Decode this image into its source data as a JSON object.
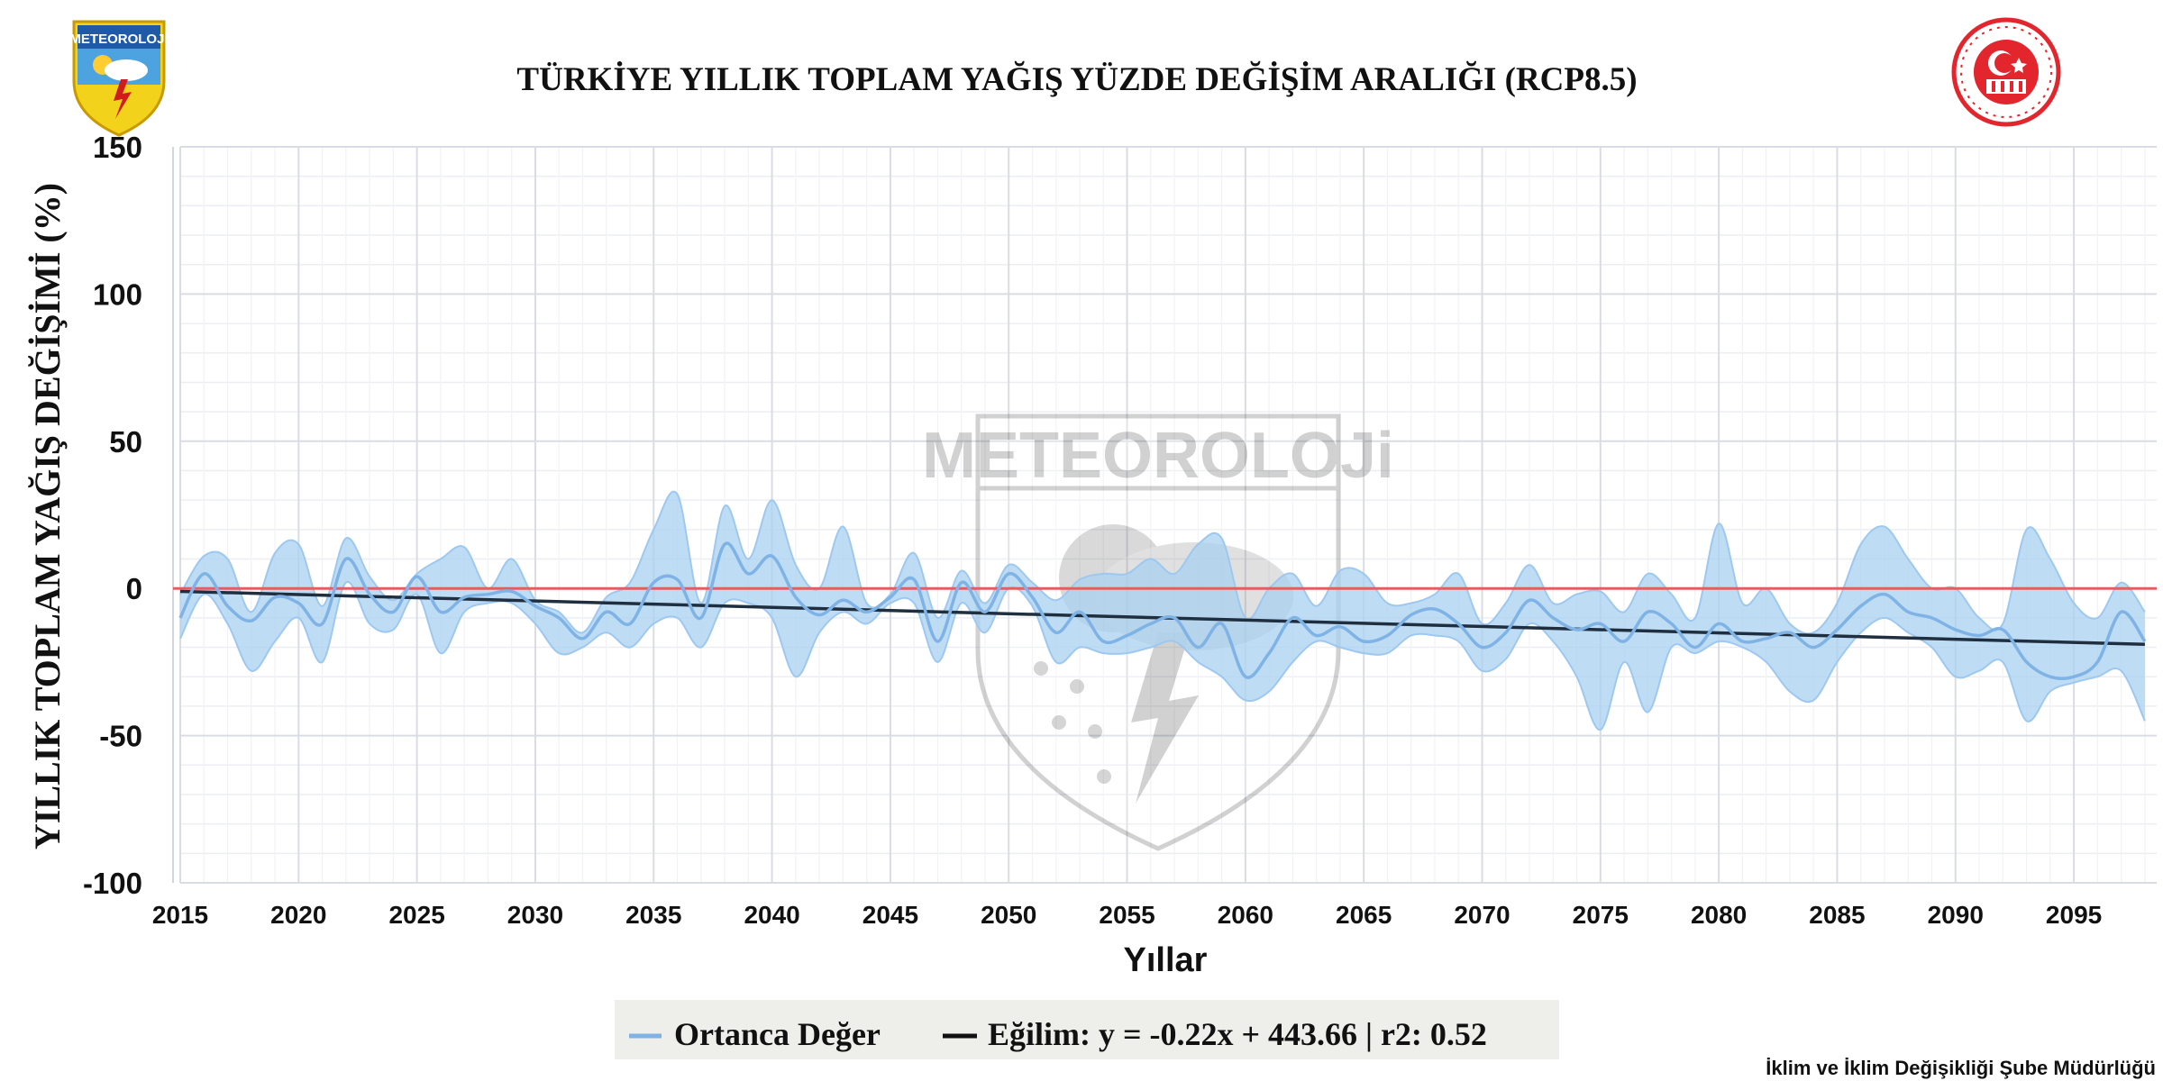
{
  "chart_data": {
    "type": "area",
    "title": "TÜRKİYE YILLIK TOPLAM YAĞIŞ YÜZDE DEĞİŞİM ARALIĞI (RCP8.5)",
    "xlabel": "Yıllar",
    "ylabel": "YILLIK TOPLAM YAĞIŞ DEĞİŞİMİ (%)",
    "xlim": [
      2015,
      2098.5
    ],
    "ylim": [
      -100,
      150
    ],
    "x_ticks": [
      "2015",
      "2020",
      "2025",
      "2030",
      "2035",
      "2040",
      "2045",
      "2050",
      "2055",
      "2060",
      "2065",
      "2070",
      "2075",
      "2080",
      "2085",
      "2090",
      "2095"
    ],
    "y_ticks": [
      "150",
      "100",
      "50",
      "0",
      "-50",
      "-100"
    ],
    "grid": true,
    "legend_position": "bottom-center",
    "legend": {
      "median_label": "Ortanca Değer",
      "trend_label": "Eğilim: y = -0.22x + 443.66 | r2: 0.52"
    },
    "reference_line": {
      "y": 0,
      "color": "#e06060"
    },
    "x": [
      2015,
      2016,
      2017,
      2018,
      2019,
      2020,
      2021,
      2022,
      2023,
      2024,
      2025,
      2026,
      2027,
      2028,
      2029,
      2030,
      2031,
      2032,
      2033,
      2034,
      2035,
      2036,
      2037,
      2038,
      2039,
      2040,
      2041,
      2042,
      2043,
      2044,
      2045,
      2046,
      2047,
      2048,
      2049,
      2050,
      2051,
      2052,
      2053,
      2054,
      2055,
      2056,
      2057,
      2058,
      2059,
      2060,
      2061,
      2062,
      2063,
      2064,
      2065,
      2066,
      2067,
      2068,
      2069,
      2070,
      2071,
      2072,
      2073,
      2074,
      2075,
      2076,
      2077,
      2078,
      2079,
      2080,
      2081,
      2082,
      2083,
      2084,
      2085,
      2086,
      2087,
      2088,
      2089,
      2090,
      2091,
      2092,
      2093,
      2094,
      2095,
      2096,
      2097,
      2098
    ],
    "series": [
      {
        "name": "Ortanca Değer",
        "color": "#7fb3e6",
        "values": [
          -10,
          5,
          -6,
          -11,
          -3,
          -5,
          -12,
          10,
          -2,
          -8,
          4,
          -8,
          -3,
          -2,
          -1,
          -6,
          -10,
          -17,
          -8,
          -12,
          2,
          3,
          -10,
          15,
          5,
          11,
          -3,
          -9,
          -4,
          -8,
          -3,
          3,
          -18,
          2,
          -8,
          5,
          -3,
          -15,
          -8,
          -18,
          -16,
          -12,
          -10,
          -20,
          -12,
          -30,
          -22,
          -10,
          -16,
          -13,
          -18,
          -16,
          -9,
          -7,
          -12,
          -20,
          -15,
          -4,
          -10,
          -14,
          -12,
          -18,
          -8,
          -12,
          -20,
          -12,
          -18,
          -17,
          -15,
          -20,
          -14,
          -6,
          -2,
          -8,
          -10,
          -14,
          -16,
          -14,
          -25,
          -30,
          -30,
          -25,
          -8,
          -18
        ]
      },
      {
        "name": "Upper range",
        "color": "#9dc8ef",
        "values": [
          -2,
          11,
          10,
          -8,
          12,
          15,
          -6,
          17,
          4,
          -4,
          5,
          10,
          14,
          0,
          10,
          -4,
          -8,
          -15,
          -3,
          2,
          20,
          32,
          -5,
          28,
          10,
          30,
          8,
          0,
          21,
          -5,
          -2,
          12,
          -10,
          6,
          -5,
          8,
          2,
          -4,
          3,
          5,
          5,
          10,
          5,
          15,
          17,
          -10,
          0,
          5,
          -6,
          6,
          5,
          -5,
          -5,
          -2,
          5,
          -12,
          -5,
          8,
          -5,
          -2,
          -1,
          -8,
          5,
          -2,
          -10,
          22,
          -5,
          0,
          -12,
          -15,
          -5,
          15,
          21,
          10,
          0,
          0,
          -10,
          -12,
          20,
          10,
          -5,
          -10,
          2,
          -8
        ]
      },
      {
        "name": "Lower range",
        "color": "#9dc8ef",
        "values": [
          -17,
          -2,
          -12,
          -28,
          -18,
          -10,
          -25,
          2,
          -12,
          -14,
          -2,
          -22,
          -8,
          -5,
          -5,
          -12,
          -22,
          -20,
          -15,
          -20,
          -12,
          -10,
          -20,
          -5,
          -5,
          -10,
          -30,
          -15,
          -8,
          -12,
          -5,
          -5,
          -25,
          -5,
          -15,
          0,
          -6,
          -25,
          -20,
          -22,
          -22,
          -20,
          -18,
          -25,
          -30,
          -38,
          -35,
          -25,
          -18,
          -20,
          -22,
          -22,
          -16,
          -16,
          -18,
          -28,
          -24,
          -12,
          -18,
          -30,
          -48,
          -25,
          -42,
          -20,
          -22,
          -18,
          -20,
          -25,
          -35,
          -38,
          -25,
          -15,
          -10,
          -15,
          -20,
          -30,
          -28,
          -25,
          -45,
          -35,
          -32,
          -30,
          -28,
          -45
        ]
      }
    ],
    "trend": {
      "name": "Eğilim",
      "x": [
        2015,
        2098
      ],
      "y": [
        -1,
        -19
      ],
      "color": "#1f2f3f"
    }
  },
  "logos": {
    "left_text": "METEOROLOJi",
    "watermark_text": "METEOROLOJi"
  },
  "footer": "İklim ve İklim Değişikliği Şube Müdürlüğü"
}
